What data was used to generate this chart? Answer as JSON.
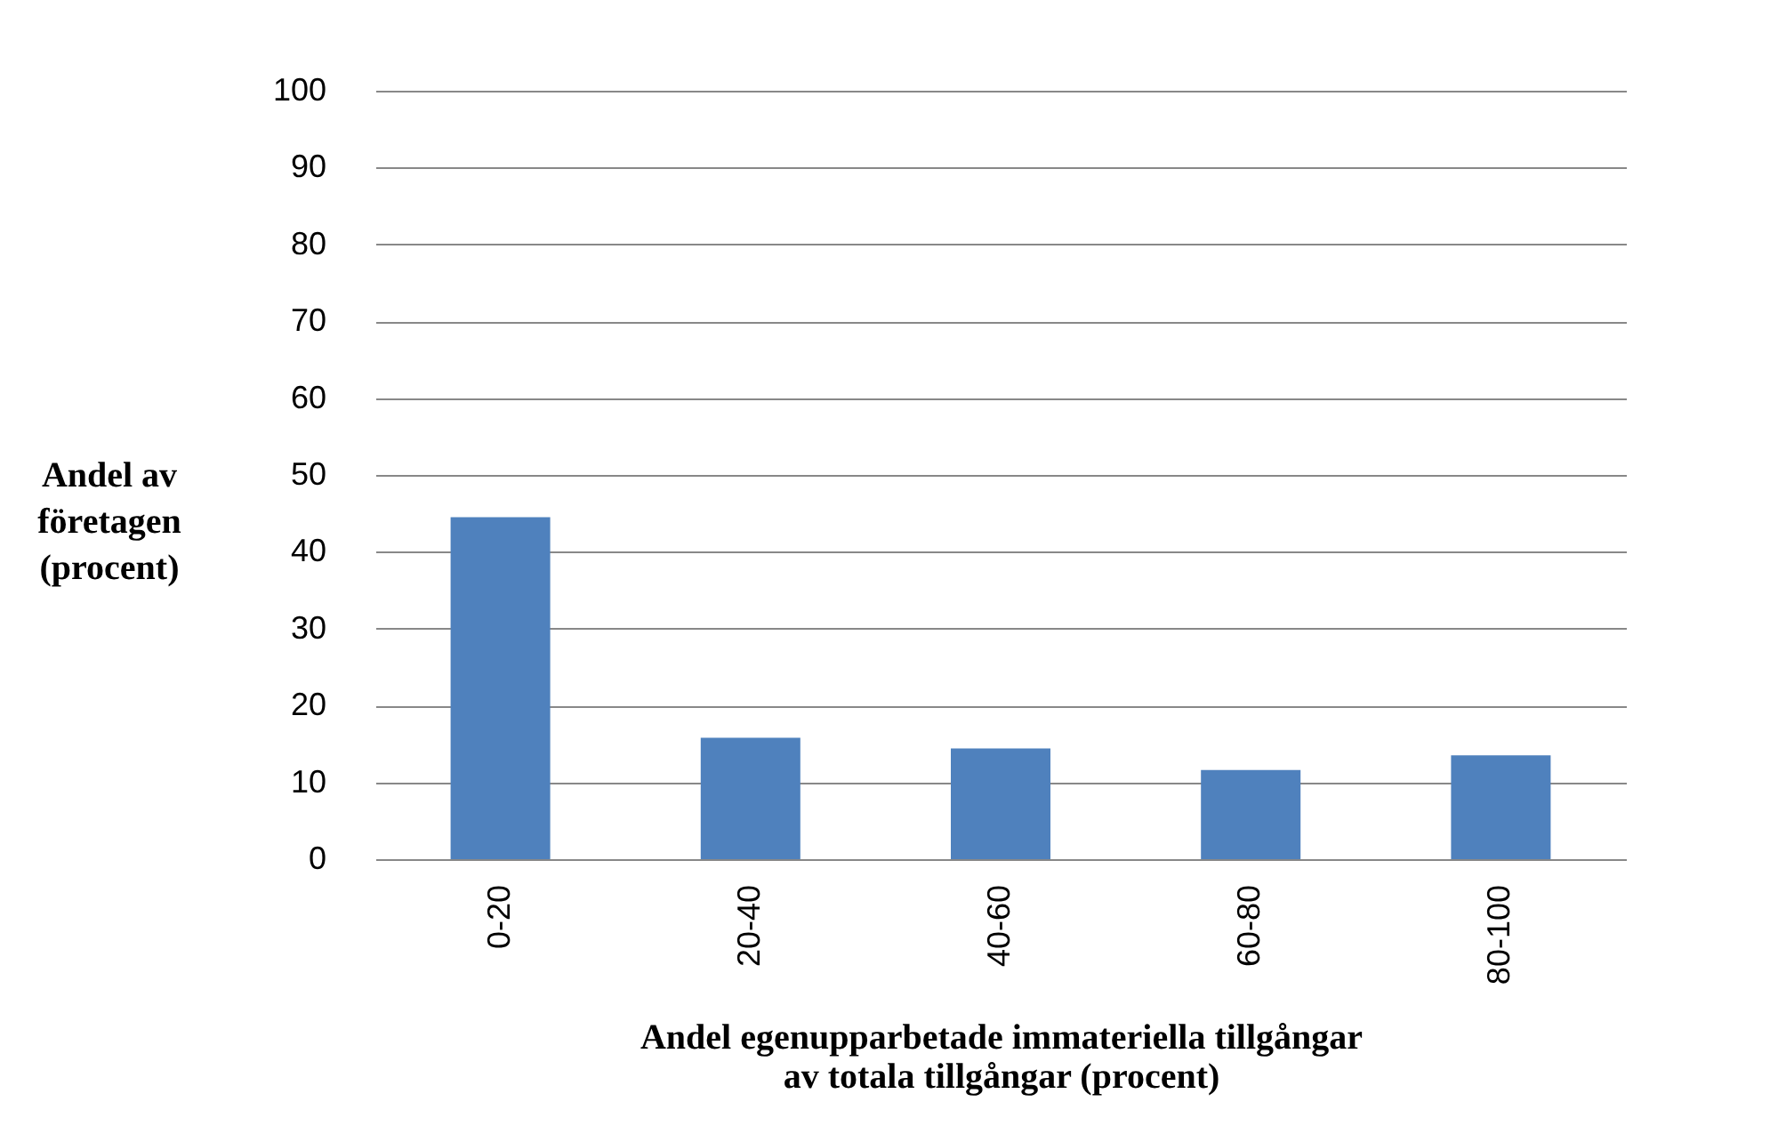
{
  "chart_data": {
    "type": "bar",
    "xlabel": "Andel egenupparbetade immateriella  tillgångar\nav totala tillgångar (procent)",
    "ylabel": "Andel av\nföretagen\n(procent)",
    "categories": [
      "0-20",
      "20-40",
      "40-60",
      "60-80",
      "80-100"
    ],
    "values": [
      44.5,
      15.8,
      14.4,
      11.6,
      13.5
    ],
    "color": "#4f81bd",
    "ylim": [
      0,
      100
    ],
    "yticks": [
      0,
      10,
      20,
      30,
      40,
      50,
      60,
      70,
      80,
      90,
      100
    ],
    "grid": "y"
  }
}
